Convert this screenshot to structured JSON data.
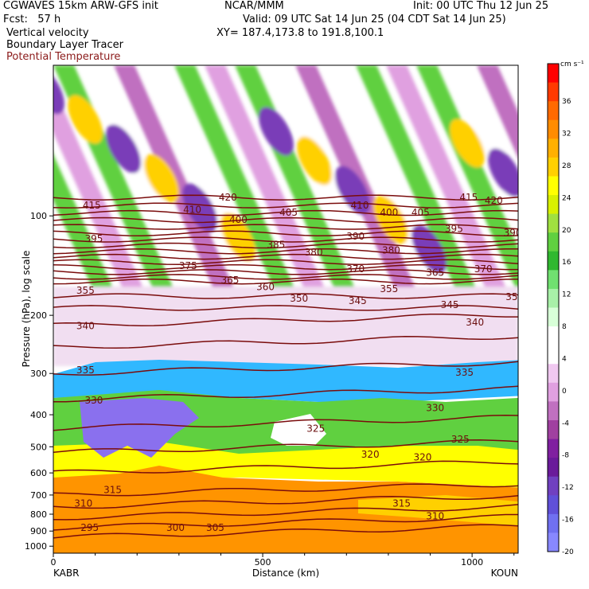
{
  "header": {
    "line1_left": "CGWAVES 15km ARW-GFS init",
    "line1_mid": "NCAR/MMM",
    "line1_right": "Init: 00 UTC Thu 12 Jun 25",
    "line2_left": "Fcst:   57 h",
    "line2_right": "Valid: 09 UTC Sat 14 Jun 25 (04 CDT Sat 14 Jun 25)",
    "fields": [
      "Vertical velocity",
      "Boundary Layer Tracer",
      "Potential Temperature"
    ],
    "xy": "XY= 187.4,173.8 to 191.8,100.1"
  },
  "colors": {
    "potential_temperature": "#7a0c0c",
    "frame": "#000000"
  },
  "chart_data": {
    "type": "heatmap",
    "title": "Vertical velocity",
    "xlabel": "Distance (km)",
    "ylabel": "Pressure (hPa), log scale",
    "x_ticks": [
      0,
      500,
      1000
    ],
    "x_range": [
      0,
      1110
    ],
    "y_ticks": [
      "100",
      "200",
      "300",
      "400",
      "500",
      "600",
      "700",
      "800",
      "900",
      "1000"
    ],
    "y_scale": "log",
    "endpoints": {
      "left": "KABR",
      "right": "KOUN"
    },
    "colorbar": {
      "unit": "cm s⁻¹",
      "labels": [
        "36",
        "32",
        "28",
        "24",
        "20",
        "16",
        "12",
        "8",
        "4",
        "0",
        "-4",
        "-8",
        "-12",
        "-16",
        "-20"
      ],
      "colors": [
        "#ff0000",
        "#ff3a00",
        "#ff6a00",
        "#ff8c00",
        "#ffb000",
        "#ffd000",
        "#ffff00",
        "#d8f000",
        "#a0e040",
        "#60d040",
        "#30b830",
        "#70e070",
        "#a8f0a8",
        "#d8ffd8",
        "#ffffff",
        "#ffffff",
        "#f0c8f0",
        "#e0a0e0",
        "#c070c0",
        "#a040a0",
        "#8020a0",
        "#6a1a9a",
        "#7040c0",
        "#6050d8",
        "#7070f0",
        "#8888ff"
      ]
    },
    "potential_temperature_labels": [
      {
        "text": "420",
        "x": 395,
        "p": 90
      },
      {
        "text": "415",
        "x": 70,
        "p": 95
      },
      {
        "text": "410",
        "x": 310,
        "p": 98
      },
      {
        "text": "410",
        "x": 710,
        "p": 95
      },
      {
        "text": "400",
        "x": 420,
        "p": 105
      },
      {
        "text": "405",
        "x": 540,
        "p": 100
      },
      {
        "text": "400",
        "x": 780,
        "p": 100
      },
      {
        "text": "405",
        "x": 855,
        "p": 100
      },
      {
        "text": "415",
        "x": 970,
        "p": 90
      },
      {
        "text": "420",
        "x": 1030,
        "p": 92
      },
      {
        "text": "395",
        "x": 75,
        "p": 120
      },
      {
        "text": "385",
        "x": 510,
        "p": 125
      },
      {
        "text": "390",
        "x": 700,
        "p": 118
      },
      {
        "text": "380",
        "x": 600,
        "p": 132
      },
      {
        "text": "380",
        "x": 785,
        "p": 130
      },
      {
        "text": "395",
        "x": 935,
        "p": 112
      },
      {
        "text": "390",
        "x": 1075,
        "p": 115
      },
      {
        "text": "375",
        "x": 300,
        "p": 145
      },
      {
        "text": "370",
        "x": 700,
        "p": 148
      },
      {
        "text": "365",
        "x": 890,
        "p": 152
      },
      {
        "text": "370",
        "x": 1005,
        "p": 148
      },
      {
        "text": "355",
        "x": 55,
        "p": 172
      },
      {
        "text": "365",
        "x": 400,
        "p": 160
      },
      {
        "text": "360",
        "x": 485,
        "p": 168
      },
      {
        "text": "355",
        "x": 780,
        "p": 170
      },
      {
        "text": "350",
        "x": 565,
        "p": 182
      },
      {
        "text": "345",
        "x": 705,
        "p": 185
      },
      {
        "text": "345",
        "x": 925,
        "p": 190
      },
      {
        "text": "350",
        "x": 1080,
        "p": 180
      },
      {
        "text": "340",
        "x": 55,
        "p": 220
      },
      {
        "text": "340",
        "x": 985,
        "p": 215
      },
      {
        "text": "335",
        "x": 55,
        "p": 300
      },
      {
        "text": "335",
        "x": 960,
        "p": 305
      },
      {
        "text": "330",
        "x": 75,
        "p": 370
      },
      {
        "text": "330",
        "x": 890,
        "p": 390
      },
      {
        "text": "325",
        "x": 605,
        "p": 450
      },
      {
        "text": "325",
        "x": 950,
        "p": 485
      },
      {
        "text": "320",
        "x": 735,
        "p": 540
      },
      {
        "text": "320",
        "x": 860,
        "p": 550
      },
      {
        "text": "315",
        "x": 120,
        "p": 690
      },
      {
        "text": "315",
        "x": 810,
        "p": 760
      },
      {
        "text": "310",
        "x": 50,
        "p": 760
      },
      {
        "text": "310",
        "x": 890,
        "p": 830
      },
      {
        "text": "295",
        "x": 65,
        "p": 900
      },
      {
        "text": "300",
        "x": 270,
        "p": 900
      },
      {
        "text": "305",
        "x": 365,
        "p": 900
      }
    ]
  }
}
